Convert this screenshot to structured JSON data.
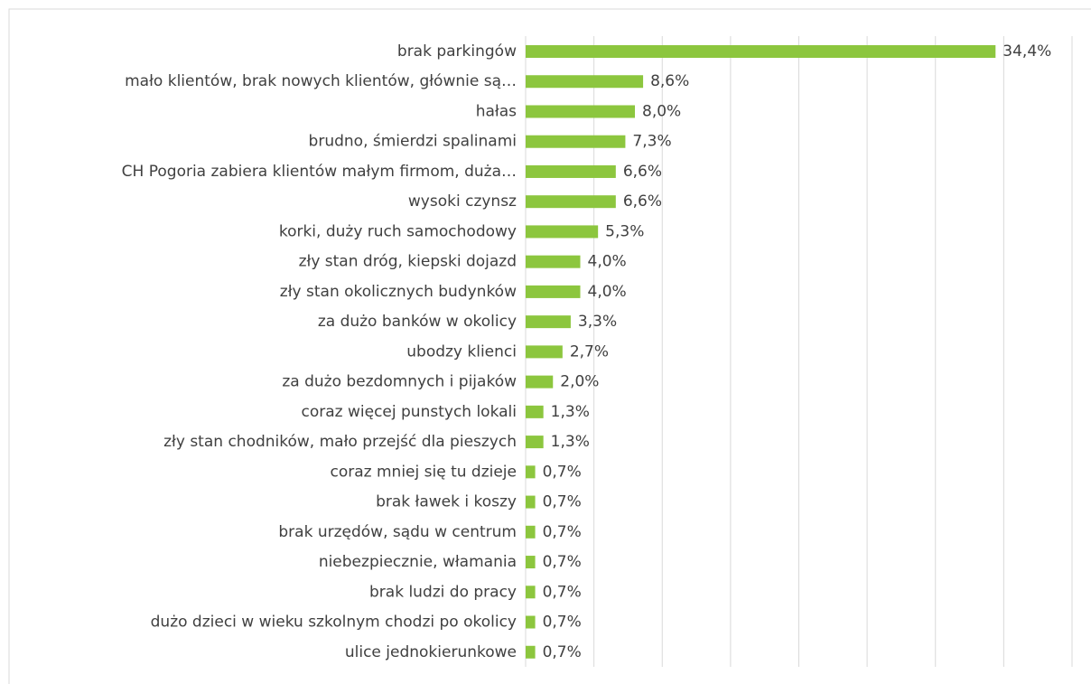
{
  "chart_data": {
    "type": "barh",
    "categories": [
      "brak parkingów",
      "mało klientów, brak nowych klientów, głównie są…",
      "hałas",
      "brudno, śmierdzi spalinami",
      "CH Pogoria zabiera klientów małym firmom, duża…",
      "wysoki czynsz",
      "korki, duży ruch samochodowy",
      "zły stan dróg, kiepski dojazd",
      "zły stan okolicznych budynków",
      "za dużo banków w okolicy",
      "ubodzy klienci",
      "za dużo bezdomnych i pijaków",
      "coraz więcej punstych lokali",
      "zły stan chodników, mało przejść dla pieszych",
      "coraz mniej się tu dzieje",
      "brak ławek i koszy",
      "brak urzędów, sądu w centrum",
      "niebezpiecznie, włamania",
      "brak ludzi do pracy",
      "dużo dzieci w wieku szkolnym chodzi po okolicy",
      "ulice jednokierunkowe"
    ],
    "values": [
      34.4,
      8.6,
      8.0,
      7.3,
      6.6,
      6.6,
      5.3,
      4.0,
      4.0,
      3.3,
      2.7,
      2.0,
      1.3,
      1.3,
      0.7,
      0.7,
      0.7,
      0.7,
      0.7,
      0.7,
      0.7
    ],
    "value_labels": [
      "34,4%",
      "8,6%",
      "8,0%",
      "7,3%",
      "6,6%",
      "6,6%",
      "5,3%",
      "4,0%",
      "4,0%",
      "3,3%",
      "2,7%",
      "2,0%",
      "1,3%",
      "1,3%",
      "0,7%",
      "0,7%",
      "0,7%",
      "0,7%",
      "0,7%",
      "0,7%",
      "0,7%"
    ],
    "color": "#8cc63e",
    "xlim": [
      0,
      40
    ],
    "xticks": [
      0,
      5,
      10,
      15,
      20,
      25,
      30,
      35,
      40
    ],
    "grid": true
  }
}
